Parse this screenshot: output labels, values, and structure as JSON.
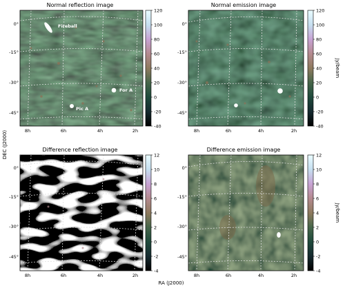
{
  "figure": {
    "ylabel": "DEC (J2000)",
    "xlabel": "RA (J2000)"
  },
  "chart_data": [
    {
      "type": "heatmap",
      "title": "Normal reflection image",
      "dec_ticks": [
        "0°",
        "-15°",
        "-30°",
        "-45°"
      ],
      "ra_ticks": [
        "8h",
        "6h",
        "4h",
        "2h"
      ],
      "annotations": [
        "Fireball",
        "For A",
        "Pic A"
      ],
      "colorbar": {
        "ticks": [
          120,
          100,
          80,
          60,
          40,
          20,
          0,
          -20,
          -40
        ],
        "range": [
          -40,
          120
        ],
        "label": ""
      }
    },
    {
      "type": "heatmap",
      "title": "Normal emission image",
      "dec_ticks": [
        "0°",
        "-15°",
        "-30°",
        "-45°"
      ],
      "ra_ticks": [
        "8h",
        "6h",
        "4h",
        "2h"
      ],
      "annotations": [],
      "colorbar": {
        "ticks": [
          120,
          100,
          80,
          60,
          40,
          20,
          0,
          -20,
          -40
        ],
        "range": [
          -40,
          120
        ],
        "label": "Jy/beam"
      }
    },
    {
      "type": "heatmap",
      "title": "Difference reflection image",
      "dec_ticks": [
        "0°",
        "-15°",
        "-30°",
        "-45°"
      ],
      "ra_ticks": [
        "8h",
        "6h",
        "4h",
        "2h"
      ],
      "annotations": [],
      "colorbar": {
        "ticks": [
          12,
          10,
          8,
          6,
          4,
          2,
          0,
          -2,
          -4
        ],
        "range": [
          -4,
          12
        ],
        "label": ""
      }
    },
    {
      "type": "heatmap",
      "title": "Difference emission image",
      "dec_ticks": [
        "0°",
        "-15°",
        "-30°",
        "-45°"
      ],
      "ra_ticks": [
        "8h",
        "6h",
        "4h",
        "2h"
      ],
      "annotations": [],
      "colorbar": {
        "ticks": [
          12,
          10,
          8,
          6,
          4,
          2,
          0,
          -2,
          -4
        ],
        "range": [
          -4,
          12
        ],
        "label": "Jy/beam"
      }
    }
  ],
  "colors": {
    "colormap": [
      "#000000",
      "#162a2f",
      "#1f4a3c",
      "#46664a",
      "#8e7a5e",
      "#b48a8f",
      "#c7a3d4",
      "#c6dff0",
      "#eafcff"
    ],
    "grid": "#dddddd",
    "annotation": "#ffffff"
  }
}
